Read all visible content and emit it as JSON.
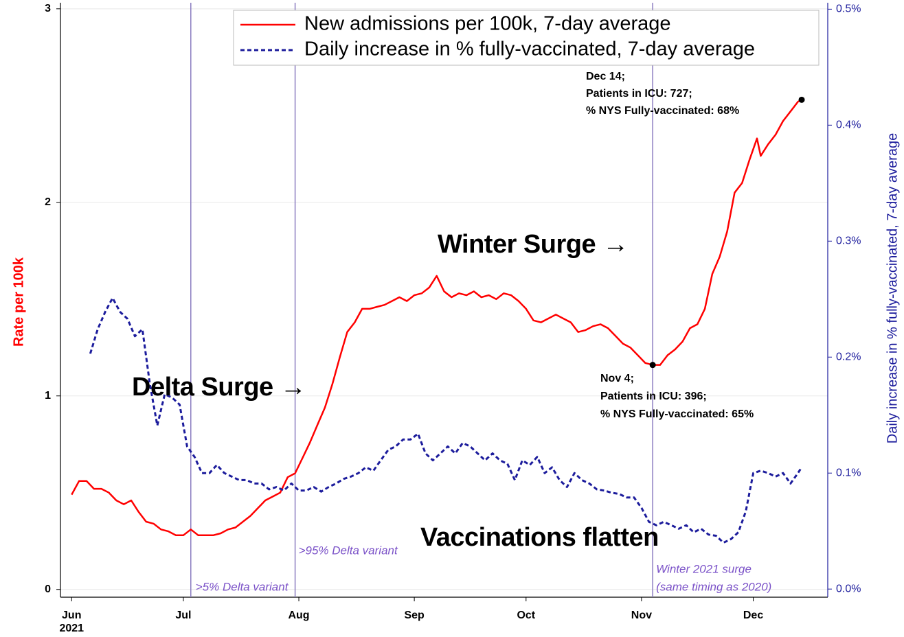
{
  "chart_data": {
    "type": "line",
    "ylabel": "Rate per 100k",
    "y2label": "Daily increase in % fully-vaccinated, 7-day average",
    "xlim": [
      "2021-05-29",
      "2021-12-21"
    ],
    "xticks": [
      {
        "value": "2021-06-01",
        "label": "Jun"
      },
      {
        "value": "2021-07-01",
        "label": "Jul"
      },
      {
        "value": "2021-08-01",
        "label": "Aug"
      },
      {
        "value": "2021-09-01",
        "label": "Sep"
      },
      {
        "value": "2021-10-01",
        "label": "Oct"
      },
      {
        "value": "2021-11-01",
        "label": "Nov"
      },
      {
        "value": "2021-12-01",
        "label": "Dec"
      }
    ],
    "x_year_label": "2021",
    "ylim": [
      -0.04,
      3.01
    ],
    "yticks": [
      0,
      1,
      2,
      3
    ],
    "y2lim": [
      -0.007,
      0.502
    ],
    "y2ticks": [
      {
        "value": 0,
        "label": "0.0%"
      },
      {
        "value": 0.1,
        "label": "0.1%"
      },
      {
        "value": 0.2,
        "label": "0.2%"
      },
      {
        "value": 0.3,
        "label": "0.3%"
      },
      {
        "value": 0.4,
        "label": "0.4%"
      },
      {
        "value": 0.5,
        "label": "0.5%"
      }
    ],
    "grid": true,
    "legend": "top",
    "series": [
      {
        "name": "New admissions per 100k, 7-day average",
        "color": "#ff0000",
        "style": "solid",
        "axis": "y",
        "x": [
          "2021-06-01",
          "2021-06-03",
          "2021-06-05",
          "2021-06-07",
          "2021-06-09",
          "2021-06-11",
          "2021-06-13",
          "2021-06-15",
          "2021-06-17",
          "2021-06-19",
          "2021-06-21",
          "2021-06-23",
          "2021-06-25",
          "2021-06-27",
          "2021-06-29",
          "2021-07-01",
          "2021-07-03",
          "2021-07-05",
          "2021-07-07",
          "2021-07-09",
          "2021-07-11",
          "2021-07-13",
          "2021-07-15",
          "2021-07-17",
          "2021-07-19",
          "2021-07-21",
          "2021-07-23",
          "2021-07-25",
          "2021-07-27",
          "2021-07-29",
          "2021-07-31",
          "2021-08-02",
          "2021-08-04",
          "2021-08-06",
          "2021-08-08",
          "2021-08-10",
          "2021-08-12",
          "2021-08-14",
          "2021-08-16",
          "2021-08-18",
          "2021-08-20",
          "2021-08-22",
          "2021-08-24",
          "2021-08-26",
          "2021-08-28",
          "2021-08-30",
          "2021-09-01",
          "2021-09-03",
          "2021-09-05",
          "2021-09-07",
          "2021-09-09",
          "2021-09-11",
          "2021-09-13",
          "2021-09-15",
          "2021-09-17",
          "2021-09-19",
          "2021-09-21",
          "2021-09-23",
          "2021-09-25",
          "2021-09-27",
          "2021-09-29",
          "2021-10-01",
          "2021-10-03",
          "2021-10-05",
          "2021-10-07",
          "2021-10-09",
          "2021-10-11",
          "2021-10-13",
          "2021-10-15",
          "2021-10-17",
          "2021-10-19",
          "2021-10-21",
          "2021-10-23",
          "2021-10-25",
          "2021-10-27",
          "2021-10-29",
          "2021-10-31",
          "2021-11-02",
          "2021-11-04",
          "2021-11-06",
          "2021-11-08",
          "2021-11-10",
          "2021-11-12",
          "2021-11-14",
          "2021-11-16",
          "2021-11-18",
          "2021-11-20",
          "2021-11-22",
          "2021-11-24",
          "2021-11-26",
          "2021-11-28",
          "2021-11-30",
          "2021-12-02",
          "2021-12-03",
          "2021-12-05",
          "2021-12-07",
          "2021-12-09",
          "2021-12-11",
          "2021-12-13",
          "2021-12-14"
        ],
        "values": [
          0.49,
          0.56,
          0.56,
          0.52,
          0.52,
          0.5,
          0.46,
          0.44,
          0.46,
          0.4,
          0.35,
          0.34,
          0.31,
          0.3,
          0.28,
          0.28,
          0.31,
          0.28,
          0.28,
          0.28,
          0.29,
          0.31,
          0.32,
          0.35,
          0.38,
          0.42,
          0.46,
          0.48,
          0.5,
          0.58,
          0.6,
          0.68,
          0.76,
          0.85,
          0.94,
          1.06,
          1.2,
          1.33,
          1.38,
          1.45,
          1.45,
          1.46,
          1.47,
          1.49,
          1.51,
          1.49,
          1.52,
          1.53,
          1.56,
          1.62,
          1.54,
          1.51,
          1.53,
          1.52,
          1.54,
          1.51,
          1.52,
          1.5,
          1.53,
          1.52,
          1.49,
          1.45,
          1.39,
          1.38,
          1.4,
          1.42,
          1.4,
          1.38,
          1.33,
          1.34,
          1.36,
          1.37,
          1.35,
          1.31,
          1.27,
          1.25,
          1.21,
          1.17,
          1.16,
          1.16,
          1.21,
          1.24,
          1.28,
          1.35,
          1.37,
          1.45,
          1.63,
          1.72,
          1.85,
          2.05,
          2.1,
          2.22,
          2.33,
          2.24,
          2.3,
          2.35,
          2.42,
          2.47,
          2.52,
          2.53
        ]
      },
      {
        "name": "Daily increase in % fully-vaccinated, 7-day average",
        "color": "#1c1c9c",
        "style": "dashed",
        "axis": "y2",
        "x": [
          "2021-06-06",
          "2021-06-08",
          "2021-06-10",
          "2021-06-12",
          "2021-06-14",
          "2021-06-16",
          "2021-06-18",
          "2021-06-20",
          "2021-06-22",
          "2021-06-24",
          "2021-06-26",
          "2021-06-28",
          "2021-06-30",
          "2021-07-02",
          "2021-07-04",
          "2021-07-06",
          "2021-07-08",
          "2021-07-10",
          "2021-07-12",
          "2021-07-14",
          "2021-07-16",
          "2021-07-18",
          "2021-07-20",
          "2021-07-22",
          "2021-07-24",
          "2021-07-26",
          "2021-07-28",
          "2021-07-30",
          "2021-08-01",
          "2021-08-03",
          "2021-08-05",
          "2021-08-07",
          "2021-08-09",
          "2021-08-11",
          "2021-08-13",
          "2021-08-15",
          "2021-08-17",
          "2021-08-19",
          "2021-08-21",
          "2021-08-23",
          "2021-08-25",
          "2021-08-27",
          "2021-08-29",
          "2021-08-31",
          "2021-09-02",
          "2021-09-04",
          "2021-09-06",
          "2021-09-08",
          "2021-09-10",
          "2021-09-12",
          "2021-09-14",
          "2021-09-16",
          "2021-09-18",
          "2021-09-20",
          "2021-09-22",
          "2021-09-24",
          "2021-09-26",
          "2021-09-28",
          "2021-09-30",
          "2021-10-02",
          "2021-10-04",
          "2021-10-06",
          "2021-10-08",
          "2021-10-10",
          "2021-10-12",
          "2021-10-14",
          "2021-10-16",
          "2021-10-18",
          "2021-10-20",
          "2021-10-22",
          "2021-10-24",
          "2021-10-26",
          "2021-10-28",
          "2021-10-30",
          "2021-11-01",
          "2021-11-03",
          "2021-11-05",
          "2021-11-07",
          "2021-11-09",
          "2021-11-11",
          "2021-11-13",
          "2021-11-15",
          "2021-11-17",
          "2021-11-19",
          "2021-11-21",
          "2021-11-23",
          "2021-11-25",
          "2021-11-27",
          "2021-11-29",
          "2021-12-01",
          "2021-12-03",
          "2021-12-05",
          "2021-12-07",
          "2021-12-09",
          "2021-12-11",
          "2021-12-13",
          "2021-12-14"
        ],
        "values": [
          0.203,
          0.224,
          0.239,
          0.251,
          0.239,
          0.233,
          0.218,
          0.224,
          0.177,
          0.141,
          0.168,
          0.165,
          0.159,
          0.123,
          0.114,
          0.1,
          0.1,
          0.107,
          0.1,
          0.097,
          0.094,
          0.094,
          0.091,
          0.091,
          0.086,
          0.088,
          0.085,
          0.091,
          0.085,
          0.085,
          0.088,
          0.084,
          0.088,
          0.091,
          0.095,
          0.097,
          0.1,
          0.105,
          0.102,
          0.111,
          0.12,
          0.123,
          0.129,
          0.129,
          0.134,
          0.117,
          0.111,
          0.117,
          0.123,
          0.117,
          0.126,
          0.123,
          0.117,
          0.111,
          0.117,
          0.111,
          0.108,
          0.094,
          0.111,
          0.107,
          0.114,
          0.1,
          0.105,
          0.094,
          0.088,
          0.1,
          0.094,
          0.091,
          0.086,
          0.085,
          0.083,
          0.082,
          0.079,
          0.079,
          0.07,
          0.058,
          0.055,
          0.058,
          0.055,
          0.052,
          0.055,
          0.049,
          0.052,
          0.047,
          0.046,
          0.04,
          0.043,
          0.049,
          0.067,
          0.1,
          0.102,
          0.1,
          0.097,
          0.1,
          0.091,
          0.1,
          0.105
        ]
      }
    ],
    "reference_lines": [
      {
        "x": "2021-07-03",
        "label": [
          ">5% Delta variant"
        ]
      },
      {
        "x": "2021-07-31",
        "label": [
          ">95% Delta variant"
        ]
      },
      {
        "x": "2021-11-04",
        "label": [
          "Winter 2021 surge",
          "(same timing as 2020)"
        ]
      }
    ],
    "points": [
      {
        "x": "2021-11-04",
        "y": 1.16,
        "label": [
          "Nov 4;",
          "Patients in ICU: 396;",
          "% NYS Fully-vaccinated: 65%"
        ]
      },
      {
        "x": "2021-12-14",
        "y": 2.53,
        "label": [
          "Dec 14;",
          "Patients in ICU: 727;",
          "% NYS Fully-vaccinated: 68%"
        ]
      }
    ],
    "annotations": [
      "Delta Surge →",
      "Winter Surge →",
      "Vaccinations flatten"
    ]
  }
}
